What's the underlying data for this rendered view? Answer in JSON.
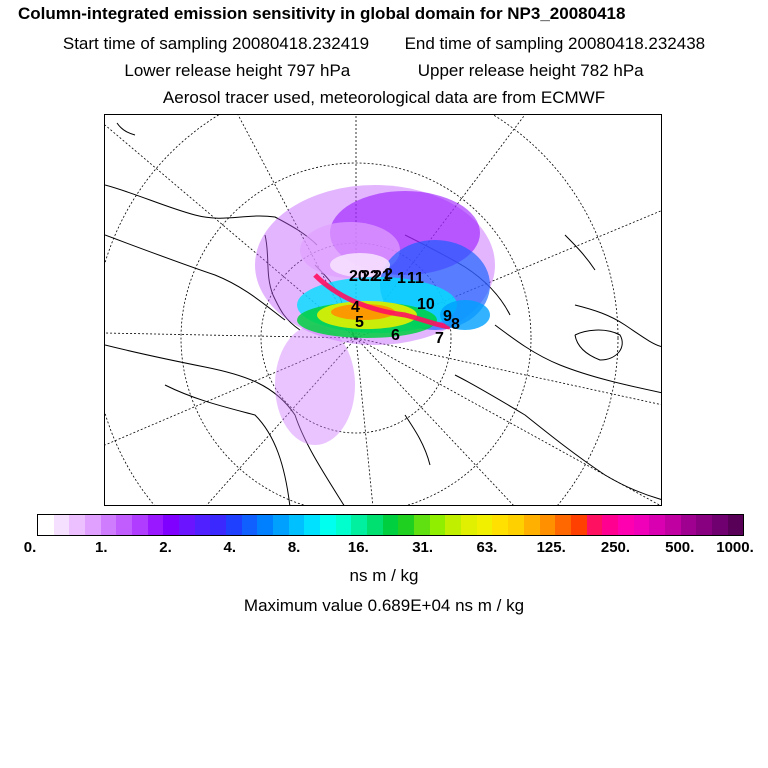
{
  "header": {
    "title": "Column-integrated emission sensitivity in global domain for NP3_20080418",
    "start_label": "Start time of sampling 20080418.232419",
    "end_label": "End time of sampling 20080418.232438",
    "lower_label": "Lower release height  797 hPa",
    "upper_label": "Upper release height  782 hPa",
    "tracer_label": "Aerosol tracer used, meteorological data are from ECMWF"
  },
  "map": {
    "projection": "polar-stereographic-north",
    "labels": [
      "20",
      "22",
      "21",
      "1",
      "2",
      "4",
      "5",
      "6",
      "7",
      "8",
      "9",
      "10",
      "11"
    ]
  },
  "colorbar": {
    "ticks": [
      "0.",
      "1.",
      "2.",
      "4.",
      "8.",
      "16.",
      "31.",
      "63.",
      "125.",
      "250.",
      "500.",
      "1000."
    ],
    "colors": [
      "#ffffff",
      "#f6e0ff",
      "#ecbfff",
      "#e0a0ff",
      "#d07cff",
      "#c15cff",
      "#b03cff",
      "#9a18ff",
      "#8000ff",
      "#6a14ff",
      "#5020ff",
      "#3a28ff",
      "#2040ff",
      "#1060ff",
      "#0080ff",
      "#00a0ff",
      "#00c0ff",
      "#00e0ff",
      "#00ffee",
      "#00ffcc",
      "#00f0a0",
      "#00e070",
      "#00d040",
      "#20d020",
      "#60e010",
      "#90ee00",
      "#c0f000",
      "#e0f000",
      "#f0f000",
      "#ffe000",
      "#ffd000",
      "#ffb000",
      "#ff9000",
      "#ff6800",
      "#ff4000",
      "#ff1060",
      "#ff0090",
      "#ff00b0",
      "#f000b8",
      "#d800b0",
      "#c000a0",
      "#a00090",
      "#880080",
      "#700070",
      "#580058"
    ],
    "unit": "ns m / kg"
  },
  "footer": {
    "max_value_label": "Maximum value  0.689E+04 ns m / kg"
  }
}
